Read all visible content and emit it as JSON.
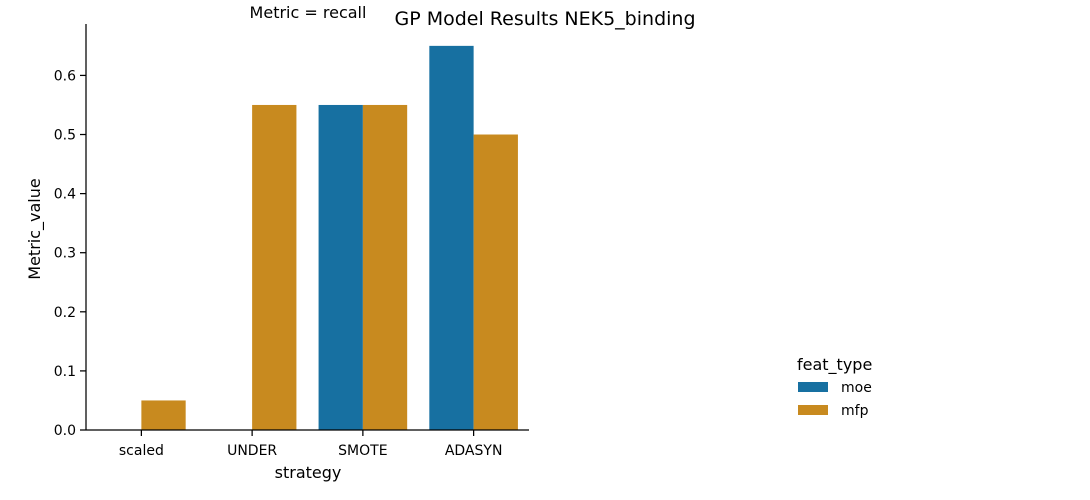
{
  "chart_data": {
    "type": "bar",
    "title": "GP Model Results NEK5_binding",
    "subtitle": "Metric = recall",
    "xlabel": "strategy",
    "ylabel": "Metric_value",
    "categories": [
      "scaled",
      "UNDER",
      "SMOTE",
      "ADASYN"
    ],
    "series": [
      {
        "name": "moe",
        "color": "#1770a1",
        "values": [
          0.0,
          0.0,
          0.55,
          0.65
        ]
      },
      {
        "name": "mfp",
        "color": "#c88a1f",
        "values": [
          0.05,
          0.55,
          0.55,
          0.5
        ]
      }
    ],
    "ylim": [
      0,
      0.687
    ],
    "yticks": [
      0.0,
      0.1,
      0.2,
      0.3,
      0.4,
      0.5,
      0.6
    ],
    "ytick_labels": [
      "0.0",
      "0.1",
      "0.2",
      "0.3",
      "0.4",
      "0.5",
      "0.6"
    ],
    "grid": false,
    "legend": {
      "title": "feat_type",
      "placement": "right"
    }
  }
}
